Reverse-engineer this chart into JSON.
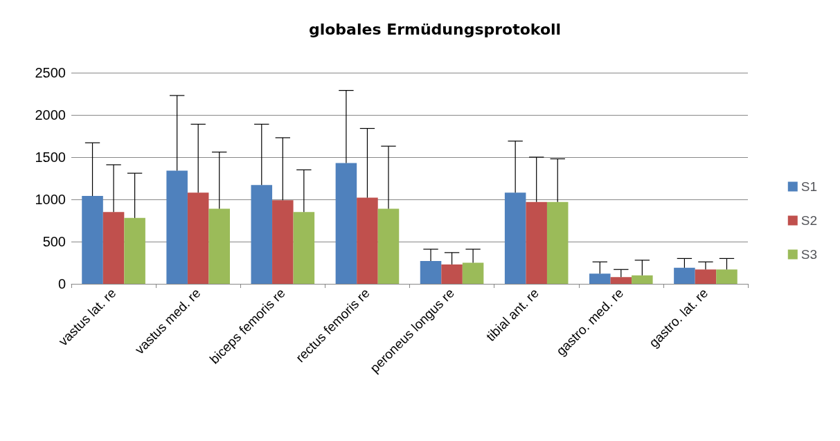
{
  "chart_data": {
    "type": "bar",
    "title": "globales Ermüdungsprotokoll",
    "categories": [
      "vastus lat. re",
      "vastus med. re",
      "biceps femoris re",
      "rectus femoris re",
      "peroneus longus re",
      "tibial ant. re",
      "gastro. med. re",
      "gastro. lat. re"
    ],
    "series": [
      {
        "name": "S1",
        "color": "#4f81bd",
        "values": [
          1040,
          1340,
          1170,
          1430,
          270,
          1080,
          120,
          190
        ],
        "errors": [
          [
            1040,
            1670
          ],
          [
            1340,
            2230
          ],
          [
            1170,
            1890
          ],
          [
            1430,
            2290
          ],
          [
            270,
            410
          ],
          [
            1080,
            1690
          ],
          [
            120,
            260
          ],
          [
            190,
            300
          ]
        ]
      },
      {
        "name": "S2",
        "color": "#c0504d",
        "values": [
          850,
          1080,
          990,
          1020,
          230,
          970,
          80,
          170
        ],
        "errors": [
          [
            850,
            1410
          ],
          [
            1080,
            1890
          ],
          [
            990,
            1730
          ],
          [
            1020,
            1840
          ],
          [
            230,
            370
          ],
          [
            970,
            1500
          ],
          [
            80,
            170
          ],
          [
            170,
            260
          ]
        ]
      },
      {
        "name": "S3",
        "color": "#9bbb59",
        "values": [
          780,
          890,
          850,
          890,
          250,
          970,
          100,
          170
        ],
        "errors": [
          [
            780,
            1310
          ],
          [
            890,
            1560
          ],
          [
            850,
            1350
          ],
          [
            890,
            1630
          ],
          [
            250,
            410
          ],
          [
            970,
            1480
          ],
          [
            100,
            280
          ],
          [
            170,
            300
          ]
        ]
      }
    ],
    "ylim": [
      0,
      2500
    ],
    "yticks": [
      0,
      500,
      1000,
      1500,
      2000,
      2500
    ],
    "grid": "y",
    "legend": "right"
  }
}
